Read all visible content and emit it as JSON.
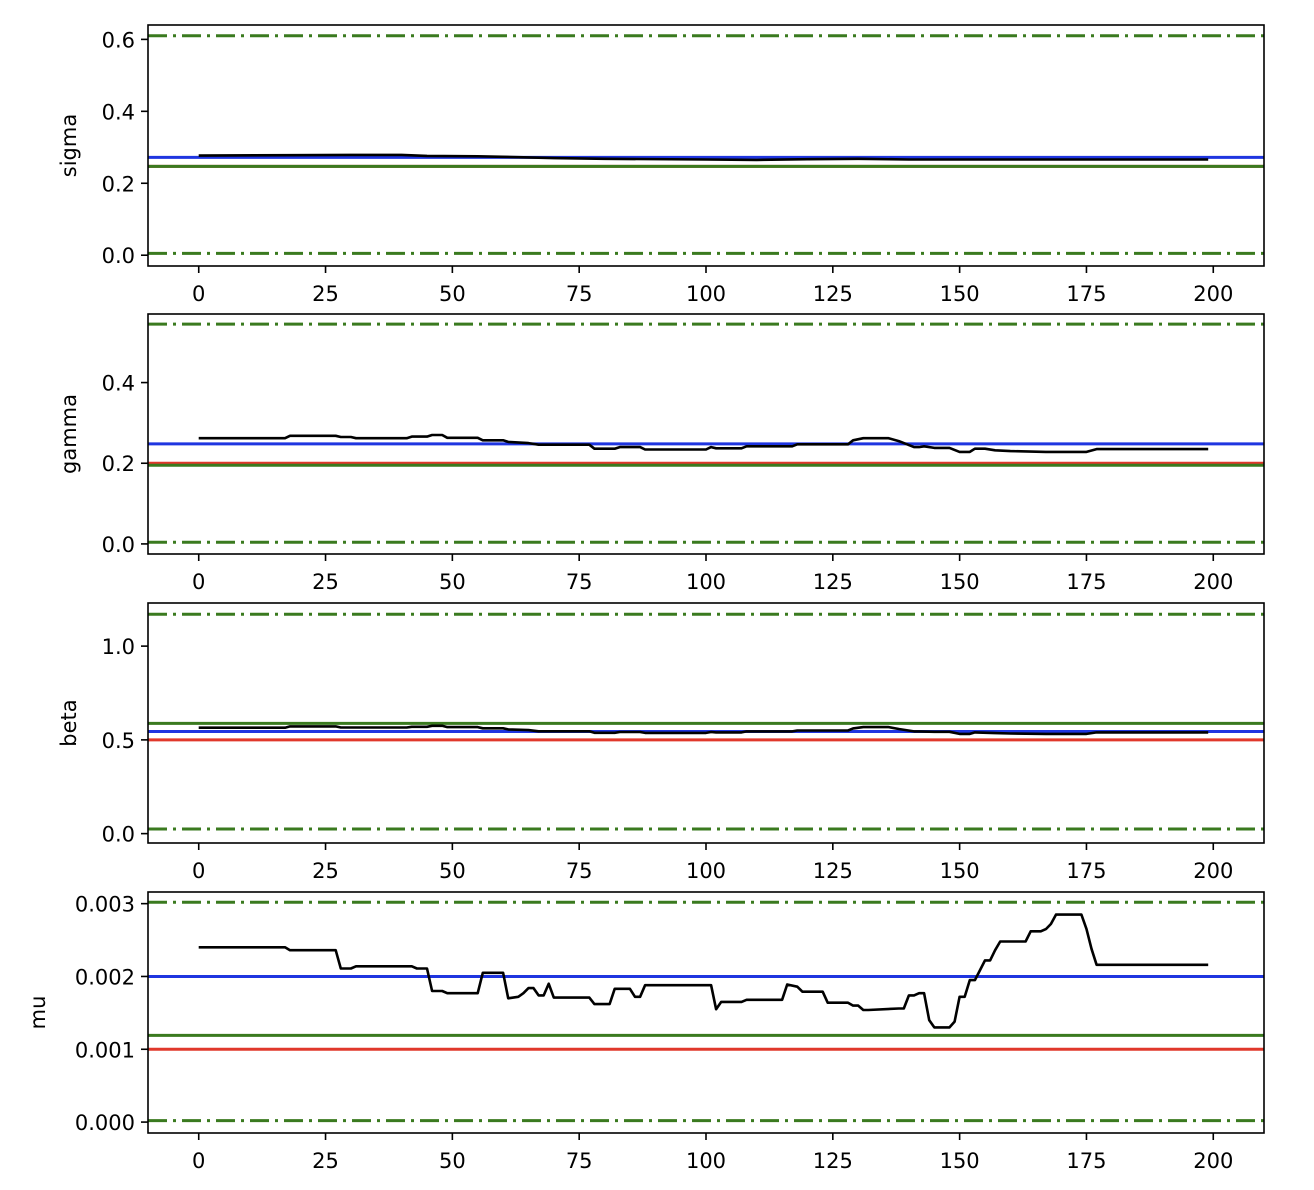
{
  "chart_data": [
    {
      "type": "line",
      "ylabel": "sigma",
      "xlim": [
        -10,
        210
      ],
      "ylim": [
        -0.03,
        0.64
      ],
      "xticks": [
        0,
        25,
        50,
        75,
        100,
        125,
        150,
        175,
        200
      ],
      "xtick_labels": [
        "0",
        "25",
        "50",
        "75",
        "100",
        "125",
        "150",
        "175",
        "200"
      ],
      "yticks": [
        0.0,
        0.2,
        0.4,
        0.6
      ],
      "ytick_labels": [
        "0.0",
        "0.2",
        "0.4",
        "0.6"
      ],
      "hlines": [
        {
          "y": 0.61,
          "style": "dashdot",
          "color": "#3a7a1f"
        },
        {
          "y": 0.005,
          "style": "dashdot",
          "color": "#3a7a1f"
        },
        {
          "y": 0.247,
          "style": "solid",
          "color": "#e0382b"
        },
        {
          "y": 0.247,
          "style": "solid",
          "color": "#3a7a1f"
        },
        {
          "y": 0.272,
          "style": "solid",
          "color": "#1f35e0"
        }
      ],
      "series": [
        {
          "color": "#000000",
          "x": [
            0,
            18,
            30,
            40,
            45,
            55,
            65,
            70,
            80,
            100,
            110,
            120,
            130,
            140,
            150,
            160,
            170,
            180,
            190,
            199
          ],
          "y": [
            0.277,
            0.278,
            0.279,
            0.279,
            0.276,
            0.275,
            0.272,
            0.27,
            0.268,
            0.266,
            0.265,
            0.267,
            0.268,
            0.266,
            0.266,
            0.266,
            0.266,
            0.266,
            0.266,
            0.266
          ]
        }
      ]
    },
    {
      "type": "line",
      "ylabel": "gamma",
      "xlim": [
        -10,
        210
      ],
      "ylim": [
        -0.025,
        0.57
      ],
      "xticks": [
        0,
        25,
        50,
        75,
        100,
        125,
        150,
        175,
        200
      ],
      "xtick_labels": [
        "0",
        "25",
        "50",
        "75",
        "100",
        "125",
        "150",
        "175",
        "200"
      ],
      "yticks": [
        0.0,
        0.2,
        0.4
      ],
      "ytick_labels": [
        "0.0",
        "0.2",
        "0.4"
      ],
      "hlines": [
        {
          "y": 0.545,
          "style": "dashdot",
          "color": "#3a7a1f"
        },
        {
          "y": 0.004,
          "style": "dashdot",
          "color": "#3a7a1f"
        },
        {
          "y": 0.2,
          "style": "solid",
          "color": "#e0382b"
        },
        {
          "y": 0.195,
          "style": "solid",
          "color": "#3a7a1f"
        },
        {
          "y": 0.248,
          "style": "solid",
          "color": "#1f35e0"
        }
      ],
      "series": [
        {
          "color": "#000000",
          "x": [
            0,
            17,
            18,
            27,
            28,
            30,
            31,
            41,
            42,
            45,
            46,
            48,
            49,
            55,
            56,
            60,
            61,
            65,
            67,
            77,
            78,
            82,
            83,
            87,
            88,
            100,
            101,
            102,
            107,
            108,
            117,
            118,
            128,
            129,
            131,
            136,
            138,
            141,
            142,
            143,
            145,
            148,
            150,
            152,
            153,
            155,
            157,
            160,
            167,
            175,
            177,
            199
          ],
          "y": [
            0.262,
            0.262,
            0.268,
            0.268,
            0.265,
            0.265,
            0.262,
            0.262,
            0.266,
            0.266,
            0.27,
            0.27,
            0.263,
            0.263,
            0.257,
            0.257,
            0.253,
            0.25,
            0.246,
            0.246,
            0.236,
            0.236,
            0.24,
            0.24,
            0.234,
            0.234,
            0.24,
            0.237,
            0.237,
            0.242,
            0.242,
            0.247,
            0.247,
            0.257,
            0.262,
            0.262,
            0.255,
            0.24,
            0.24,
            0.242,
            0.238,
            0.238,
            0.228,
            0.228,
            0.236,
            0.236,
            0.232,
            0.23,
            0.228,
            0.228,
            0.235,
            0.235
          ]
        }
      ]
    },
    {
      "type": "line",
      "ylabel": "beta",
      "xlim": [
        -10,
        210
      ],
      "ylim": [
        -0.05,
        1.23
      ],
      "xticks": [
        0,
        25,
        50,
        75,
        100,
        125,
        150,
        175,
        200
      ],
      "xtick_labels": [
        "0",
        "25",
        "50",
        "75",
        "100",
        "125",
        "150",
        "175",
        "200"
      ],
      "yticks": [
        0.0,
        0.5,
        1.0
      ],
      "ytick_labels": [
        "0.0",
        "0.5",
        "1.0"
      ],
      "hlines": [
        {
          "y": 1.17,
          "style": "dashdot",
          "color": "#3a7a1f"
        },
        {
          "y": 0.025,
          "style": "dashdot",
          "color": "#3a7a1f"
        },
        {
          "y": 0.5,
          "style": "solid",
          "color": "#e0382b"
        },
        {
          "y": 0.588,
          "style": "solid",
          "color": "#3a7a1f"
        },
        {
          "y": 0.545,
          "style": "solid",
          "color": "#1f35e0"
        }
      ],
      "series": [
        {
          "color": "#000000",
          "x": [
            0,
            17,
            18,
            27,
            28,
            41,
            42,
            45,
            46,
            48,
            49,
            55,
            56,
            60,
            61,
            65,
            67,
            77,
            78,
            82,
            83,
            87,
            88,
            100,
            101,
            102,
            107,
            108,
            117,
            118,
            128,
            129,
            131,
            136,
            138,
            141,
            142,
            145,
            148,
            150,
            152,
            153,
            157,
            160,
            167,
            175,
            177,
            199
          ],
          "y": [
            0.565,
            0.565,
            0.572,
            0.572,
            0.566,
            0.566,
            0.57,
            0.57,
            0.575,
            0.575,
            0.568,
            0.568,
            0.562,
            0.562,
            0.556,
            0.552,
            0.546,
            0.546,
            0.538,
            0.538,
            0.542,
            0.542,
            0.537,
            0.537,
            0.542,
            0.54,
            0.54,
            0.545,
            0.545,
            0.55,
            0.55,
            0.561,
            0.568,
            0.568,
            0.558,
            0.545,
            0.545,
            0.543,
            0.543,
            0.532,
            0.532,
            0.54,
            0.536,
            0.534,
            0.532,
            0.532,
            0.54,
            0.54
          ]
        }
      ]
    },
    {
      "type": "line",
      "ylabel": "mu",
      "xlim": [
        -10,
        210
      ],
      "ylim": [
        -0.00015,
        0.00316
      ],
      "xticks": [
        0,
        25,
        50,
        75,
        100,
        125,
        150,
        175,
        200
      ],
      "xtick_labels": [
        "0",
        "25",
        "50",
        "75",
        "100",
        "125",
        "150",
        "175",
        "200"
      ],
      "yticks": [
        0.0,
        0.001,
        0.002,
        0.003
      ],
      "ytick_labels": [
        "0.000",
        "0.001",
        "0.002",
        "0.003"
      ],
      "hlines": [
        {
          "y": 0.00302,
          "style": "dashdot",
          "color": "#3a7a1f"
        },
        {
          "y": 2e-05,
          "style": "dashdot",
          "color": "#3a7a1f"
        },
        {
          "y": 0.001,
          "style": "solid",
          "color": "#e0382b"
        },
        {
          "y": 0.00119,
          "style": "solid",
          "color": "#3a7a1f"
        },
        {
          "y": 0.002,
          "style": "solid",
          "color": "#1f35e0"
        }
      ],
      "series": [
        {
          "color": "#000000",
          "x": [
            0,
            17,
            18,
            27,
            28,
            30,
            31,
            42,
            43,
            45,
            46,
            48,
            49,
            55,
            56,
            60,
            61,
            63,
            64,
            65,
            66,
            67,
            68,
            69,
            70,
            77,
            78,
            81,
            82,
            85,
            86,
            87,
            88,
            101,
            102,
            103,
            107,
            108,
            115,
            116,
            118,
            119,
            123,
            124,
            128,
            129,
            130,
            131,
            132,
            138,
            139,
            140,
            141,
            142,
            143,
            144,
            145,
            148,
            149,
            150,
            151,
            152,
            153,
            155,
            156,
            157,
            158,
            159,
            160,
            163,
            164,
            166,
            167,
            168,
            169,
            172,
            173,
            174,
            175,
            176,
            177,
            199
          ],
          "y": [
            0.0024,
            0.0024,
            0.00236,
            0.00236,
            0.00211,
            0.00211,
            0.00214,
            0.00214,
            0.00211,
            0.00211,
            0.0018,
            0.0018,
            0.00177,
            0.00177,
            0.00205,
            0.00205,
            0.0017,
            0.00172,
            0.00177,
            0.00184,
            0.00184,
            0.00174,
            0.00174,
            0.0019,
            0.00171,
            0.00171,
            0.00162,
            0.00162,
            0.00183,
            0.00183,
            0.00172,
            0.00172,
            0.00188,
            0.00188,
            0.00155,
            0.00165,
            0.00165,
            0.00168,
            0.00168,
            0.00189,
            0.00186,
            0.00179,
            0.00179,
            0.00164,
            0.00164,
            0.0016,
            0.0016,
            0.00154,
            0.00154,
            0.00156,
            0.00156,
            0.00174,
            0.00174,
            0.00177,
            0.00177,
            0.0014,
            0.0013,
            0.0013,
            0.00138,
            0.00172,
            0.00172,
            0.00195,
            0.00195,
            0.00222,
            0.00222,
            0.00236,
            0.00248,
            0.00248,
            0.00248,
            0.00248,
            0.00262,
            0.00262,
            0.00265,
            0.00272,
            0.00285,
            0.00285,
            0.00285,
            0.00285,
            0.00265,
            0.00238,
            0.00216,
            0.00216
          ]
        }
      ]
    }
  ]
}
